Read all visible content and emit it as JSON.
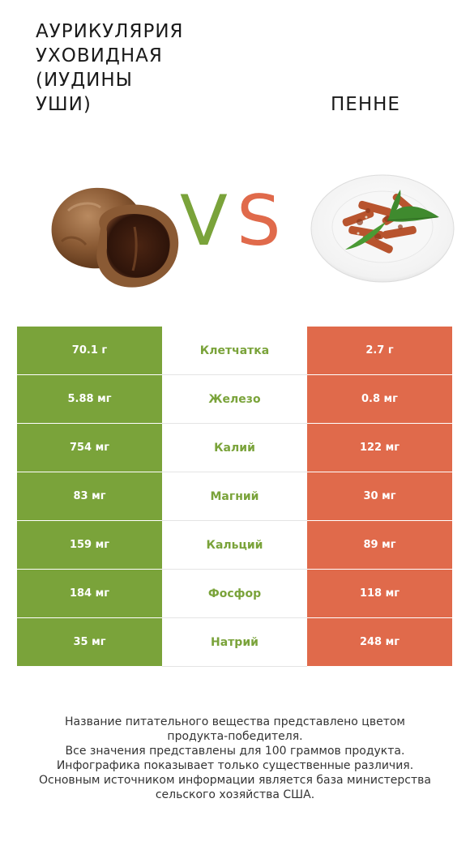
{
  "header": {
    "left_title_lines": [
      "АУРИКУЛЯРИЯ",
      "УХОВИДНАЯ",
      "(ИУДИНЫ",
      "УШИ)"
    ],
    "right_title": "ПЕННЕ",
    "vs_v": "V",
    "vs_s": "S"
  },
  "colors": {
    "left_accent": "#7aa33a",
    "right_accent": "#e06a4b"
  },
  "rows": [
    {
      "left": "70.1 г",
      "nutrient": "Клетчатка",
      "right": "2.7 г",
      "winner": "left"
    },
    {
      "left": "5.88 мг",
      "nutrient": "Железо",
      "right": "0.8 мг",
      "winner": "left"
    },
    {
      "left": "754 мг",
      "nutrient": "Калий",
      "right": "122 мг",
      "winner": "left"
    },
    {
      "left": "83 мг",
      "nutrient": "Магний",
      "right": "30 мг",
      "winner": "left"
    },
    {
      "left": "159 мг",
      "nutrient": "Кальций",
      "right": "89 мг",
      "winner": "left"
    },
    {
      "left": "184 мг",
      "nutrient": "Фосфор",
      "right": "118 мг",
      "winner": "left"
    },
    {
      "left": "35 мг",
      "nutrient": "Натрий",
      "right": "248 мг",
      "winner": "left"
    }
  ],
  "footer": {
    "lines": [
      "Название питательного вещества представлено цветом",
      "продукта-победителя.",
      "Все значения представлены для 100 граммов продукта.",
      "Инфографика показывает только существенные различия.",
      "Основным источником информации является база министерства",
      "сельского хозяйства США."
    ]
  }
}
